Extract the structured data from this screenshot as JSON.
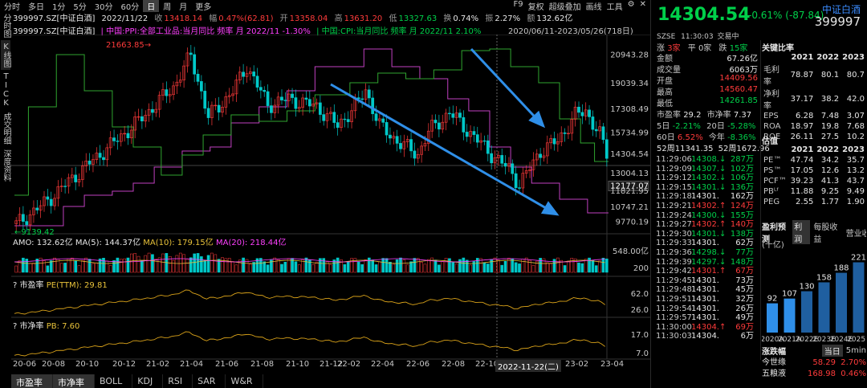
{
  "toolbar": {
    "periods": [
      "分时",
      "多日",
      "1分",
      "5分",
      "30分",
      "60分",
      "日",
      "周",
      "月",
      "更多"
    ],
    "active_period": "日",
    "right_items": [
      "F9",
      "复权",
      "超级叠加",
      "画线",
      "工具"
    ],
    "gear_icon": "gear-icon",
    "close_icon": "close-icon"
  },
  "left_rail": [
    "分时图",
    "K线图",
    "TICK",
    "成交明细",
    "深度资料"
  ],
  "info_line": {
    "code": "399997.SZ[中证白酒]",
    "date": "2022/11/22",
    "close_label": "收",
    "close": "13418.14",
    "change_label": "幅",
    "change": "0.47%(62.81)",
    "open_label": "开",
    "open": "13358.04",
    "high_label": "高",
    "high": "13631.20",
    "low_label": "低",
    "low": "13327.63",
    "turnover_label": "换",
    "turnover": "0.74%",
    "amp_label": "振",
    "amp": "2.27%",
    "amount_label": "额",
    "amount": "132.62亿"
  },
  "overlay_line": {
    "code": "399997.SZ[中证白酒]",
    "ppi": "中国:PPI:全部工业品:当月同比 频率 月 2022/11 -1.30%",
    "cpi": "中国:CPI:当月同比 频率 月 2022/11 2.10%",
    "range": "2020/06/11-2023/05/26(718日)"
  },
  "main_chart": {
    "high_mark": "21663.85",
    "low_mark": "9139.42",
    "y_ticks": [
      "20943.28",
      "19039.34",
      "17308.49",
      "15734.99",
      "14304.54",
      "13004.13",
      "12177.07",
      "11821.95",
      "10747.21",
      "9770.19"
    ],
    "cursor_value": "12177.07",
    "cursor_date": "2022-11-22(二)"
  },
  "volume_panel": {
    "label": "AMO: 132.62亿",
    "ma5": "MA(5): 144.37亿",
    "ma10": "MA(10): 179.15亿",
    "ma20": "MA(20): 218.44亿",
    "y_ticks": [
      "548.00亿",
      "200"
    ]
  },
  "pe_panel": {
    "title": "? 市盈率",
    "series": "PE(TTM): 29.81",
    "y_ticks": [
      "62.0",
      "26.0"
    ]
  },
  "pb_panel": {
    "title": "? 市净率",
    "series": "PB: 7.60",
    "y_ticks": [
      "17.0",
      "7.0"
    ]
  },
  "x_axis": [
    "20-06",
    "20-08",
    "20-10",
    "20-12",
    "21-02",
    "21-04",
    "21-06",
    "21-08",
    "21-10",
    "21-12",
    "22-02",
    "22-04",
    "22-06",
    "22-08",
    "22-10",
    "23-02",
    "23-04"
  ],
  "bottom_tabs": [
    "市盈率",
    "市净率",
    "BOLL",
    "KDJ",
    "RSI",
    "SAR",
    "W&R"
  ],
  "bottom_active": [
    "市盈率",
    "市净率"
  ],
  "quote": {
    "price": "14304.54",
    "change": "-0.61%",
    "change_abs": "(-87.84)",
    "name": "中证白酒",
    "code": "399997",
    "exchange": "SZSE",
    "time": "11:30:03",
    "status": "交易中",
    "up_label": "涨",
    "up": "3家",
    "flat_label": "平",
    "flat": "0家",
    "down_label": "跌",
    "down": "15家",
    "amount_label": "金额",
    "amount": "67.26亿",
    "volume_label": "成交量",
    "volume": "6063万",
    "open_label": "开盘",
    "open": "14409.56",
    "high_label": "最高",
    "high": "14560.47",
    "low_label": "最低",
    "low": "14261.85",
    "pe_label": "市盈率",
    "pe": "29.2",
    "pb_label": "市净率",
    "pb": "7.37",
    "d5_label": "5日",
    "d5": "-2.21%",
    "d20_label": "20日",
    "d20": "-5.28%",
    "d60_label": "60日",
    "d60": "6.52%",
    "ytd_label": "今年",
    "ytd": "-8.36%",
    "w52_low": "52周11341.35",
    "w52_high": "52周1672.96"
  },
  "key_ratios": {
    "title": "关键比率",
    "years": [
      "2021",
      "2022",
      "2023"
    ],
    "rows": [
      {
        "label": "毛利率",
        "values": [
          "78.87",
          "80.1",
          "80.7"
        ]
      },
      {
        "label": "净利率",
        "values": [
          "37.17",
          "38.2",
          "42.0"
        ]
      },
      {
        "label": "EPS",
        "values": [
          "6.28",
          "7.48",
          "3.07"
        ]
      },
      {
        "label": "ROA",
        "values": [
          "18.97",
          "19.8",
          "7.68"
        ]
      },
      {
        "label": "ROE",
        "values": [
          "26.11",
          "27.5",
          "10.2"
        ]
      }
    ]
  },
  "valuation": {
    "title": "估值",
    "years": [
      "2021",
      "2022",
      "2023"
    ],
    "rows": [
      {
        "label": "PE™",
        "values": [
          "47.74",
          "34.2",
          "35.7"
        ]
      },
      {
        "label": "PS™",
        "values": [
          "17.05",
          "12.6",
          "13.2"
        ]
      },
      {
        "label": "PCF™",
        "values": [
          "39.23",
          "41.3",
          "43.7"
        ]
      },
      {
        "label": "PBᴸᶠ",
        "values": [
          "11.88",
          "9.25",
          "9.49"
        ]
      },
      {
        "label": "PEG",
        "values": [
          "2.55",
          "1.77",
          "1.90"
        ]
      }
    ]
  },
  "forecast": {
    "title": "盈利预测",
    "tab1": "利润",
    "tab2": "每股收益",
    "tab3": "营业收入",
    "unit": "(十亿)",
    "categories": [
      "2020A",
      "2021A",
      "2022E",
      "2023E",
      "2024E",
      "2025E"
    ],
    "values": [
      92,
      107,
      130,
      158,
      188,
      221
    ]
  },
  "movers": {
    "title": "涨跌幅",
    "tab1": "当日",
    "tab2": "5min",
    "rows": [
      {
        "name": "今世缘",
        "price": "58.29",
        "pct": "2.70%"
      },
      {
        "name": "五粮液",
        "price": "168.98",
        "pct": "0.46%"
      }
    ]
  },
  "ticks": [
    {
      "t": "11:29:06",
      "p": "14308.",
      "dir": "down",
      "v": "287万"
    },
    {
      "t": "11:29:09",
      "p": "14307.",
      "dir": "down",
      "v": "102万"
    },
    {
      "t": "11:29:12",
      "p": "14302.",
      "dir": "down",
      "v": "106万"
    },
    {
      "t": "11:29:15",
      "p": "14301.",
      "dir": "down",
      "v": "136万"
    },
    {
      "t": "11:29:18",
      "p": "14301.",
      "dir": "",
      "v": "162万"
    },
    {
      "t": "11:29:21",
      "p": "14302.",
      "dir": "up",
      "v": "124万"
    },
    {
      "t": "11:29:24",
      "p": "14300.",
      "dir": "down",
      "v": "155万"
    },
    {
      "t": "11:29:27",
      "p": "14302.",
      "dir": "up",
      "v": "140万"
    },
    {
      "t": "11:29:30",
      "p": "14301.",
      "dir": "down",
      "v": "138万"
    },
    {
      "t": "11:29:33",
      "p": "14301.",
      "dir": "",
      "v": "62万"
    },
    {
      "t": "11:29:36",
      "p": "14298.",
      "dir": "down",
      "v": "77万"
    },
    {
      "t": "11:29:39",
      "p": "14297.",
      "dir": "down",
      "v": "148万"
    },
    {
      "t": "11:29:42",
      "p": "14301.",
      "dir": "up",
      "v": "67万"
    },
    {
      "t": "11:29:45",
      "p": "14301.",
      "dir": "",
      "v": "73万"
    },
    {
      "t": "11:29:48",
      "p": "14301.",
      "dir": "",
      "v": "45万"
    },
    {
      "t": "11:29:51",
      "p": "14301.",
      "dir": "",
      "v": "32万"
    },
    {
      "t": "11:29:54",
      "p": "14301.",
      "dir": "",
      "v": "26万"
    },
    {
      "t": "11:29:57",
      "p": "14301.",
      "dir": "",
      "v": "49万"
    },
    {
      "t": "11:30:00",
      "p": "14304.",
      "dir": "up",
      "v": "69万"
    },
    {
      "t": "11:30:03",
      "p": "14304.",
      "dir": "",
      "v": "6万"
    }
  ],
  "colors": {
    "up": "#ff3b3b",
    "down": "#00d04a",
    "ppi": "#c040c0",
    "cpi": "#2fa52f",
    "arrow": "#2f8fe8",
    "ma10": "#e8c23a",
    "ma20": "#ff40ff",
    "pe": "#d9a219"
  }
}
